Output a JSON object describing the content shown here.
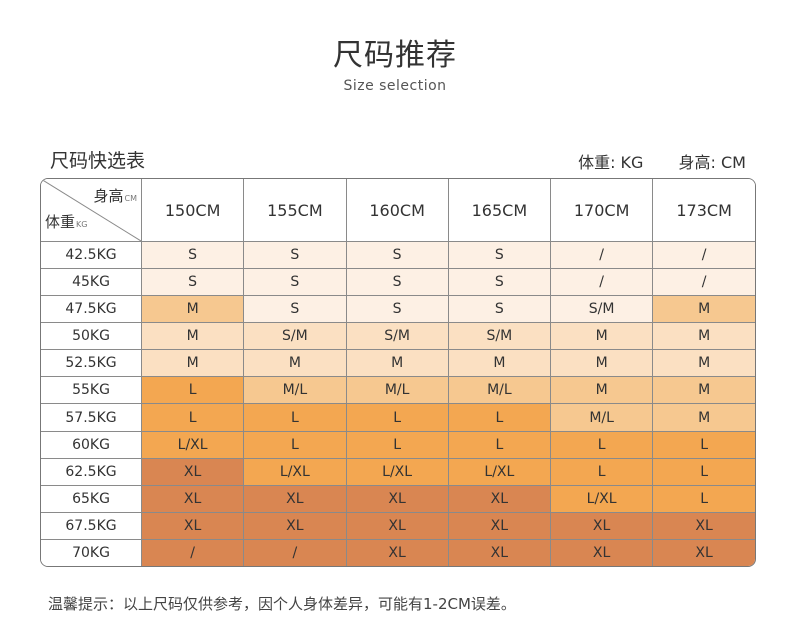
{
  "header": {
    "title": "尺码推荐",
    "subtitle": "Size selection"
  },
  "table": {
    "title": "尺码快选表",
    "units": {
      "weight": "体重: KG",
      "height": "身高: CM"
    },
    "corner": {
      "height_label": "身高",
      "height_unit": "CM",
      "weight_label": "体重",
      "weight_unit": "KG"
    },
    "columns": [
      "150CM",
      "155CM",
      "160CM",
      "165CM",
      "170CM",
      "173CM"
    ],
    "rows": [
      {
        "weight": "42.5KG",
        "sizes": [
          "S",
          "S",
          "S",
          "S",
          "/",
          "/"
        ]
      },
      {
        "weight": "45KG",
        "sizes": [
          "S",
          "S",
          "S",
          "S",
          "/",
          "/"
        ]
      },
      {
        "weight": "47.5KG",
        "sizes": [
          "M",
          "S",
          "S",
          "S",
          "S/M",
          "M"
        ]
      },
      {
        "weight": "50KG",
        "sizes": [
          "M",
          "S/M",
          "S/M",
          "S/M",
          "M",
          "M"
        ]
      },
      {
        "weight": "52.5KG",
        "sizes": [
          "M",
          "M",
          "M",
          "M",
          "M",
          "M"
        ]
      },
      {
        "weight": "55KG",
        "sizes": [
          "L",
          "M/L",
          "M/L",
          "M/L",
          "M",
          "M"
        ]
      },
      {
        "weight": "57.5KG",
        "sizes": [
          "L",
          "L",
          "L",
          "L",
          "M/L",
          "M"
        ]
      },
      {
        "weight": "60KG",
        "sizes": [
          "L/XL",
          "L",
          "L",
          "L",
          "L",
          "L"
        ]
      },
      {
        "weight": "62.5KG",
        "sizes": [
          "XL",
          "L/XL",
          "L/XL",
          "L/XL",
          "L",
          "L"
        ]
      },
      {
        "weight": "65KG",
        "sizes": [
          "XL",
          "XL",
          "XL",
          "XL",
          "L/XL",
          "L"
        ]
      },
      {
        "weight": "67.5KG",
        "sizes": [
          "XL",
          "XL",
          "XL",
          "XL",
          "XL",
          "XL"
        ]
      },
      {
        "weight": "70KG",
        "sizes": [
          "/",
          "/",
          "XL",
          "XL",
          "XL",
          "XL"
        ]
      }
    ],
    "shading_levels": [
      [
        0,
        0,
        0,
        0,
        0,
        0
      ],
      [
        0,
        0,
        0,
        0,
        0,
        0
      ],
      [
        2,
        0,
        0,
        0,
        0,
        2
      ],
      [
        1,
        1,
        1,
        1,
        1,
        1
      ],
      [
        1,
        1,
        1,
        1,
        1,
        1
      ],
      [
        3,
        2,
        2,
        2,
        2,
        2
      ],
      [
        3,
        3,
        3,
        3,
        2,
        2
      ],
      [
        3,
        3,
        3,
        3,
        3,
        3
      ],
      [
        4,
        3,
        3,
        3,
        3,
        3
      ],
      [
        4,
        4,
        4,
        4,
        3,
        3
      ],
      [
        4,
        4,
        4,
        4,
        4,
        4
      ],
      [
        4,
        4,
        4,
        4,
        4,
        4
      ]
    ],
    "colors": [
      "#fdf0e4",
      "#fbe0c2",
      "#f6c890",
      "#f3a751",
      "#d98652"
    ]
  },
  "note": "温馨提示：以上尺码仅供参考，因个人身体差异，可能有1-2CM误差。"
}
